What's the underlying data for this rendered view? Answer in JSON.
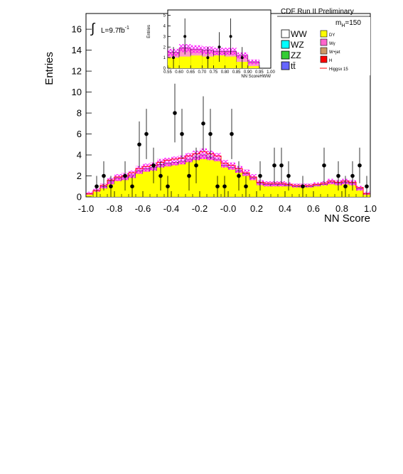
{
  "chart_data": [
    {
      "type": "bar",
      "xlabel": "NN Score",
      "ylabel": "Entries",
      "xlim": [
        -1.0,
        1.0
      ],
      "ylim": [
        0,
        17.5
      ],
      "x_ticks": [
        "-1.0",
        "-0.8",
        "-0.6",
        "-0.4",
        "-0.2",
        "-0.0",
        "0.2",
        "0.4",
        "0.6",
        "0.8",
        "1.0"
      ],
      "y_ticks": [
        "0",
        "2",
        "4",
        "6",
        "8",
        "10",
        "12",
        "14",
        "16"
      ],
      "lumi_label": "L=9.7fb",
      "lumi_exponent": "-1",
      "integral_symbol": "∫",
      "header": "CDF Run II Preliminary",
      "mass_label": "m",
      "mass_subscript": "H",
      "mass_value": "=150",
      "bin_edges": [
        -1.0,
        -0.95,
        -0.9,
        -0.85,
        -0.8,
        -0.75,
        -0.7,
        -0.65,
        -0.6,
        -0.55,
        -0.5,
        -0.45,
        -0.4,
        -0.35,
        -0.3,
        -0.25,
        -0.2,
        -0.15,
        -0.1,
        -0.05,
        0.0,
        0.05,
        0.1,
        0.15,
        0.2,
        0.25,
        0.3,
        0.35,
        0.4,
        0.45,
        0.5,
        0.55,
        0.6,
        0.65,
        0.7,
        0.75,
        0.8,
        0.85,
        0.9,
        0.95,
        1.0
      ],
      "dy": [
        0.2,
        0.5,
        0.8,
        1.2,
        1.5,
        1.6,
        1.8,
        2.2,
        2.4,
        2.5,
        2.8,
        2.9,
        3.0,
        3.1,
        3.3,
        3.5,
        3.6,
        3.5,
        3.4,
        2.8,
        2.6,
        2.3,
        2.0,
        1.6,
        1.1,
        1.0,
        1.0,
        1.0,
        1.0,
        0.9,
        0.9,
        0.9,
        1.0,
        1.1,
        1.2,
        1.1,
        1.2,
        1.1,
        0.6,
        0.2
      ],
      "total": [
        0.3,
        0.6,
        1.0,
        1.5,
        1.8,
        1.9,
        2.1,
        2.5,
        2.7,
        2.8,
        3.1,
        3.2,
        3.3,
        3.4,
        3.6,
        3.8,
        4.0,
        3.8,
        3.6,
        3.0,
        2.8,
        2.5,
        2.2,
        1.8,
        1.3,
        1.2,
        1.2,
        1.2,
        1.1,
        1.0,
        1.0,
        1.0,
        1.1,
        1.2,
        1.4,
        1.3,
        1.4,
        1.3,
        0.8,
        0.3
      ],
      "signal_line": [
        0.3,
        0.6,
        1.1,
        1.6,
        1.9,
        2.0,
        2.3,
        2.7,
        2.9,
        3.0,
        3.3,
        3.5,
        3.6,
        3.7,
        3.9,
        4.1,
        4.3,
        4.1,
        3.9,
        3.2,
        3.0,
        2.7,
        2.3,
        1.9,
        1.4,
        1.3,
        1.3,
        1.3,
        1.2,
        1.1,
        1.1,
        1.1,
        1.2,
        1.3,
        1.5,
        1.4,
        1.5,
        1.4,
        0.9,
        0.3
      ],
      "data_points": [
        {
          "x": -0.925,
          "y": 1,
          "err": 1.0
        },
        {
          "x": -0.875,
          "y": 2,
          "err": 1.4
        },
        {
          "x": -0.825,
          "y": 1,
          "err": 1.0
        },
        {
          "x": -0.725,
          "y": 2,
          "err": 1.4
        },
        {
          "x": -0.675,
          "y": 1,
          "err": 1.0
        },
        {
          "x": -0.625,
          "y": 5,
          "err": 2.2
        },
        {
          "x": -0.575,
          "y": 6,
          "err": 2.4
        },
        {
          "x": -0.525,
          "y": 3,
          "err": 1.7
        },
        {
          "x": -0.475,
          "y": 2,
          "err": 1.4
        },
        {
          "x": -0.425,
          "y": 1,
          "err": 1.0
        },
        {
          "x": -0.375,
          "y": 8,
          "err": 2.8
        },
        {
          "x": -0.325,
          "y": 6,
          "err": 2.4
        },
        {
          "x": -0.275,
          "y": 2,
          "err": 1.4
        },
        {
          "x": -0.225,
          "y": 3,
          "err": 1.7
        },
        {
          "x": -0.175,
          "y": 7,
          "err": 2.6
        },
        {
          "x": -0.125,
          "y": 6,
          "err": 2.4
        },
        {
          "x": -0.075,
          "y": 1,
          "err": 1.0
        },
        {
          "x": -0.025,
          "y": 1,
          "err": 1.0
        },
        {
          "x": 0.025,
          "y": 6,
          "err": 2.4
        },
        {
          "x": 0.075,
          "y": 2,
          "err": 1.4
        },
        {
          "x": 0.125,
          "y": 1,
          "err": 1.0
        },
        {
          "x": 0.225,
          "y": 2,
          "err": 1.4
        },
        {
          "x": 0.325,
          "y": 3,
          "err": 1.7
        },
        {
          "x": 0.375,
          "y": 3,
          "err": 1.7
        },
        {
          "x": 0.425,
          "y": 2,
          "err": 1.4
        },
        {
          "x": 0.525,
          "y": 1,
          "err": 1.0
        },
        {
          "x": 0.675,
          "y": 3,
          "err": 1.7
        },
        {
          "x": 0.775,
          "y": 2,
          "err": 1.4
        },
        {
          "x": 0.825,
          "y": 1,
          "err": 1.0
        },
        {
          "x": 0.875,
          "y": 2,
          "err": 1.4
        },
        {
          "x": 0.925,
          "y": 3,
          "err": 1.7
        },
        {
          "x": 0.975,
          "y": 1,
          "err": 1.0
        }
      ]
    },
    {
      "type": "bar",
      "xlabel": "NN ScoreHWW",
      "ylabel": "Entries",
      "xlim": [
        0.55,
        1.0
      ],
      "ylim": [
        0,
        5.5
      ],
      "x_ticks": [
        "0.55",
        "0.60",
        "0.65",
        "0.70",
        "0.75",
        "0.80",
        "0.85",
        "0.90",
        "0.95",
        "1.00"
      ],
      "y_ticks": [
        "0",
        "1",
        "2",
        "3",
        "4",
        "5"
      ],
      "bin_edges": [
        0.55,
        0.6,
        0.65,
        0.7,
        0.75,
        0.8,
        0.85,
        0.9,
        0.95,
        1.0
      ],
      "dy": [
        1.0,
        1.1,
        1.2,
        1.1,
        1.2,
        1.1,
        0.6,
        0.2,
        0.0
      ],
      "total": [
        1.5,
        1.9,
        1.8,
        1.7,
        1.6,
        1.6,
        1.2,
        0.6,
        0.0
      ],
      "data_points": [
        {
          "x": 0.575,
          "y": 1,
          "err": 1.0
        },
        {
          "x": 0.625,
          "y": 3,
          "err": 1.7
        },
        {
          "x": 0.725,
          "y": 1,
          "err": 1.0
        },
        {
          "x": 0.775,
          "y": 2,
          "err": 1.4
        },
        {
          "x": 0.825,
          "y": 3,
          "err": 1.7
        },
        {
          "x": 0.875,
          "y": 1,
          "err": 1.0
        }
      ]
    }
  ],
  "legend": {
    "items": [
      {
        "label": "WW",
        "color": "#ffffff"
      },
      {
        "label": "WZ",
        "color": "#00ffff"
      },
      {
        "label": "ZZ",
        "color": "#33cc33"
      },
      {
        "label": "tt̄",
        "color": "#6666ff"
      },
      {
        "label": "DY",
        "color": "#ffff00"
      },
      {
        "label": "Wγ",
        "color": "#ff66cc"
      },
      {
        "label": "W+jet",
        "color": "#cc9966"
      },
      {
        "label": "H",
        "color": "#ff0000"
      },
      {
        "label": "Higgsx 15",
        "color": "#ff0000"
      }
    ]
  },
  "colors": {
    "dy": "#ffff00",
    "total_fill": "#ff99cc",
    "hatch": "#ff00ff",
    "signal": "#ff0000",
    "data": "#000000"
  }
}
